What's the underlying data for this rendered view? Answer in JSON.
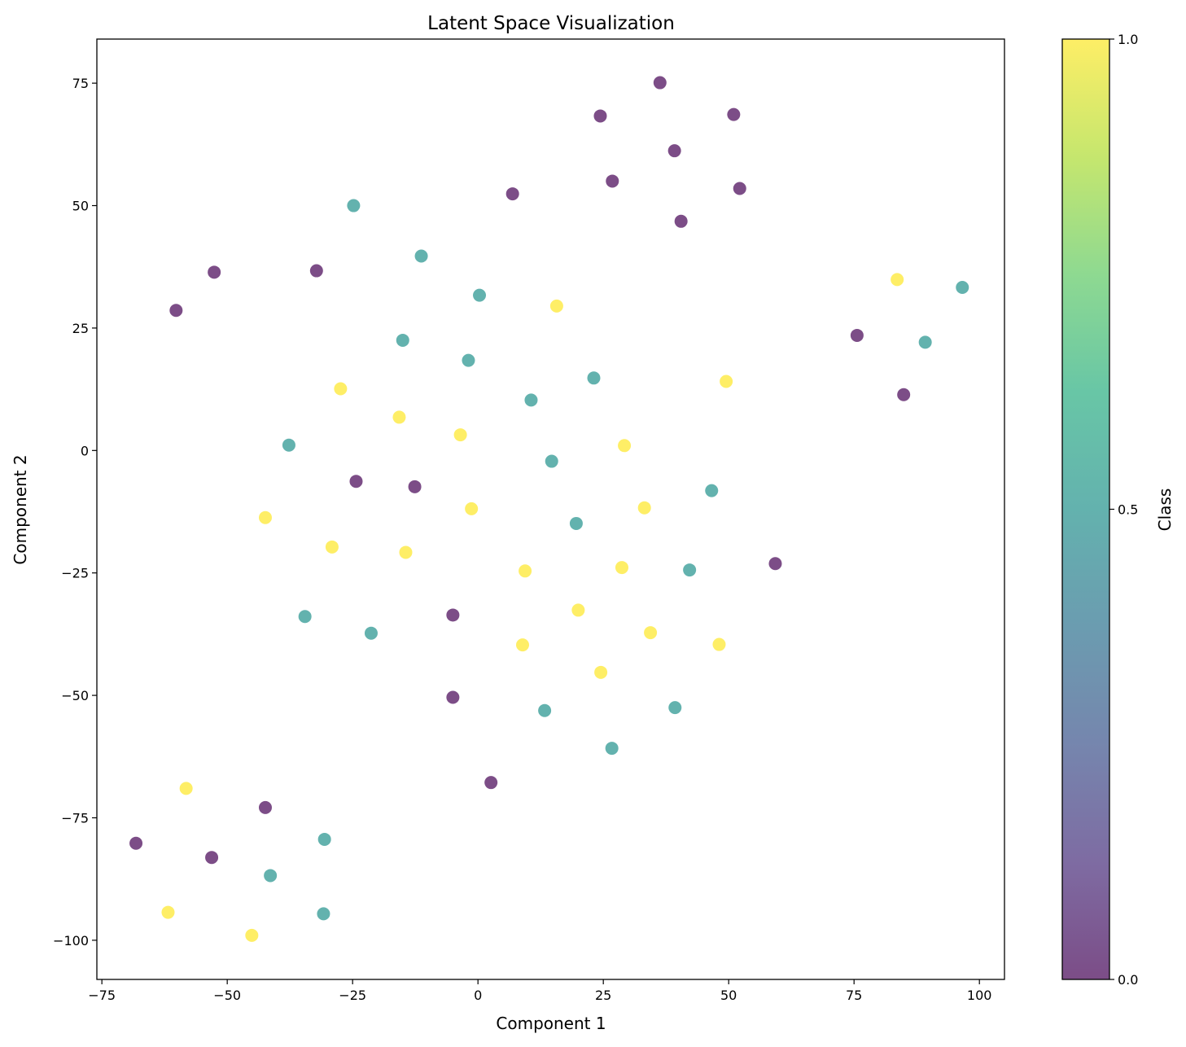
{
  "chart_data": {
    "type": "scatter",
    "title": "Latent Space Visualization",
    "xlabel": "Component 1",
    "ylabel": "Component 2",
    "xlim": [
      -76,
      105
    ],
    "ylim": [
      -108,
      84
    ],
    "xticks": [
      -75,
      -50,
      -25,
      0,
      25,
      50,
      75,
      100
    ],
    "xtick_labels": [
      "−75",
      "−50",
      "−25",
      "0",
      "25",
      "50",
      "75",
      "100"
    ],
    "yticks": [
      -100,
      -75,
      -50,
      -25,
      0,
      25,
      50,
      75
    ],
    "ytick_labels": [
      "−100",
      "−75",
      "−50",
      "−25",
      "0",
      "25",
      "50",
      "75"
    ],
    "grid": false,
    "marker_alpha": 0.7,
    "colorbar": {
      "label": "Class",
      "range": [
        0.0,
        1.0
      ],
      "ticks": [
        0.0,
        0.5,
        1.0
      ],
      "tick_labels": [
        "0.0",
        "0.5",
        "1.0"
      ],
      "colormap": "viridis",
      "colors": {
        "0": "#440154",
        "0.5": "#21918c",
        "1": "#fde725"
      }
    },
    "points": [
      {
        "x": 36.3,
        "y": 75.1,
        "class": 0
      },
      {
        "x": 24.4,
        "y": 68.3,
        "class": 0
      },
      {
        "x": 51.0,
        "y": 68.6,
        "class": 0
      },
      {
        "x": 39.2,
        "y": 61.2,
        "class": 0
      },
      {
        "x": 26.8,
        "y": 55.0,
        "class": 0
      },
      {
        "x": 52.2,
        "y": 53.5,
        "class": 0
      },
      {
        "x": 6.9,
        "y": 52.4,
        "class": 0
      },
      {
        "x": 40.5,
        "y": 46.8,
        "class": 0
      },
      {
        "x": -52.6,
        "y": 36.4,
        "class": 0
      },
      {
        "x": -32.2,
        "y": 36.7,
        "class": 0
      },
      {
        "x": -60.2,
        "y": 28.6,
        "class": 0
      },
      {
        "x": 75.6,
        "y": 23.5,
        "class": 0
      },
      {
        "x": 84.9,
        "y": 11.4,
        "class": 0
      },
      {
        "x": -24.3,
        "y": -6.3,
        "class": 0
      },
      {
        "x": -12.6,
        "y": -7.4,
        "class": 0
      },
      {
        "x": 59.3,
        "y": -23.1,
        "class": 0
      },
      {
        "x": -5.0,
        "y": -33.6,
        "class": 0
      },
      {
        "x": -5.0,
        "y": -50.4,
        "class": 0
      },
      {
        "x": 2.6,
        "y": -67.8,
        "class": 0
      },
      {
        "x": -42.4,
        "y": -72.9,
        "class": 0
      },
      {
        "x": -68.2,
        "y": -80.2,
        "class": 0
      },
      {
        "x": -53.1,
        "y": -83.1,
        "class": 0
      },
      {
        "x": -24.8,
        "y": 50.0,
        "class": 0.5
      },
      {
        "x": -11.3,
        "y": 39.7,
        "class": 0.5
      },
      {
        "x": 0.3,
        "y": 31.7,
        "class": 0.5
      },
      {
        "x": -15.0,
        "y": 22.5,
        "class": 0.5
      },
      {
        "x": -1.9,
        "y": 18.4,
        "class": 0.5
      },
      {
        "x": 23.1,
        "y": 14.8,
        "class": 0.5
      },
      {
        "x": 10.6,
        "y": 10.3,
        "class": 0.5
      },
      {
        "x": -37.7,
        "y": 1.1,
        "class": 0.5
      },
      {
        "x": 14.7,
        "y": -2.2,
        "class": 0.5
      },
      {
        "x": 46.6,
        "y": -8.2,
        "class": 0.5
      },
      {
        "x": 19.6,
        "y": -14.9,
        "class": 0.5
      },
      {
        "x": 42.2,
        "y": -24.4,
        "class": 0.5
      },
      {
        "x": -34.5,
        "y": -33.9,
        "class": 0.5
      },
      {
        "x": -21.3,
        "y": -37.3,
        "class": 0.5
      },
      {
        "x": 13.3,
        "y": -53.1,
        "class": 0.5
      },
      {
        "x": 39.3,
        "y": -52.5,
        "class": 0.5
      },
      {
        "x": 26.7,
        "y": -60.8,
        "class": 0.5
      },
      {
        "x": 96.6,
        "y": 33.3,
        "class": 0.5
      },
      {
        "x": 89.2,
        "y": 22.1,
        "class": 0.5
      },
      {
        "x": -30.6,
        "y": -79.4,
        "class": 0.5
      },
      {
        "x": -41.4,
        "y": -86.8,
        "class": 0.5
      },
      {
        "x": -30.8,
        "y": -94.6,
        "class": 0.5
      },
      {
        "x": 15.7,
        "y": 29.5,
        "class": 1
      },
      {
        "x": 83.6,
        "y": 34.9,
        "class": 1
      },
      {
        "x": -27.4,
        "y": 12.6,
        "class": 1
      },
      {
        "x": 49.5,
        "y": 14.1,
        "class": 1
      },
      {
        "x": -15.7,
        "y": 6.8,
        "class": 1
      },
      {
        "x": -3.5,
        "y": 3.2,
        "class": 1
      },
      {
        "x": 29.2,
        "y": 1.0,
        "class": 1
      },
      {
        "x": -42.4,
        "y": -13.7,
        "class": 1
      },
      {
        "x": -1.3,
        "y": -11.9,
        "class": 1
      },
      {
        "x": 33.2,
        "y": -11.7,
        "class": 1
      },
      {
        "x": -29.1,
        "y": -19.7,
        "class": 1
      },
      {
        "x": -14.4,
        "y": -20.8,
        "class": 1
      },
      {
        "x": 9.4,
        "y": -24.6,
        "class": 1
      },
      {
        "x": 28.7,
        "y": -23.9,
        "class": 1
      },
      {
        "x": 20.0,
        "y": -32.6,
        "class": 1
      },
      {
        "x": 34.4,
        "y": -37.2,
        "class": 1
      },
      {
        "x": 8.9,
        "y": -39.7,
        "class": 1
      },
      {
        "x": 48.1,
        "y": -39.6,
        "class": 1
      },
      {
        "x": 24.5,
        "y": -45.3,
        "class": 1
      },
      {
        "x": -58.2,
        "y": -69.0,
        "class": 1
      },
      {
        "x": -61.8,
        "y": -94.3,
        "class": 1
      },
      {
        "x": -45.1,
        "y": -99.0,
        "class": 1
      }
    ]
  }
}
